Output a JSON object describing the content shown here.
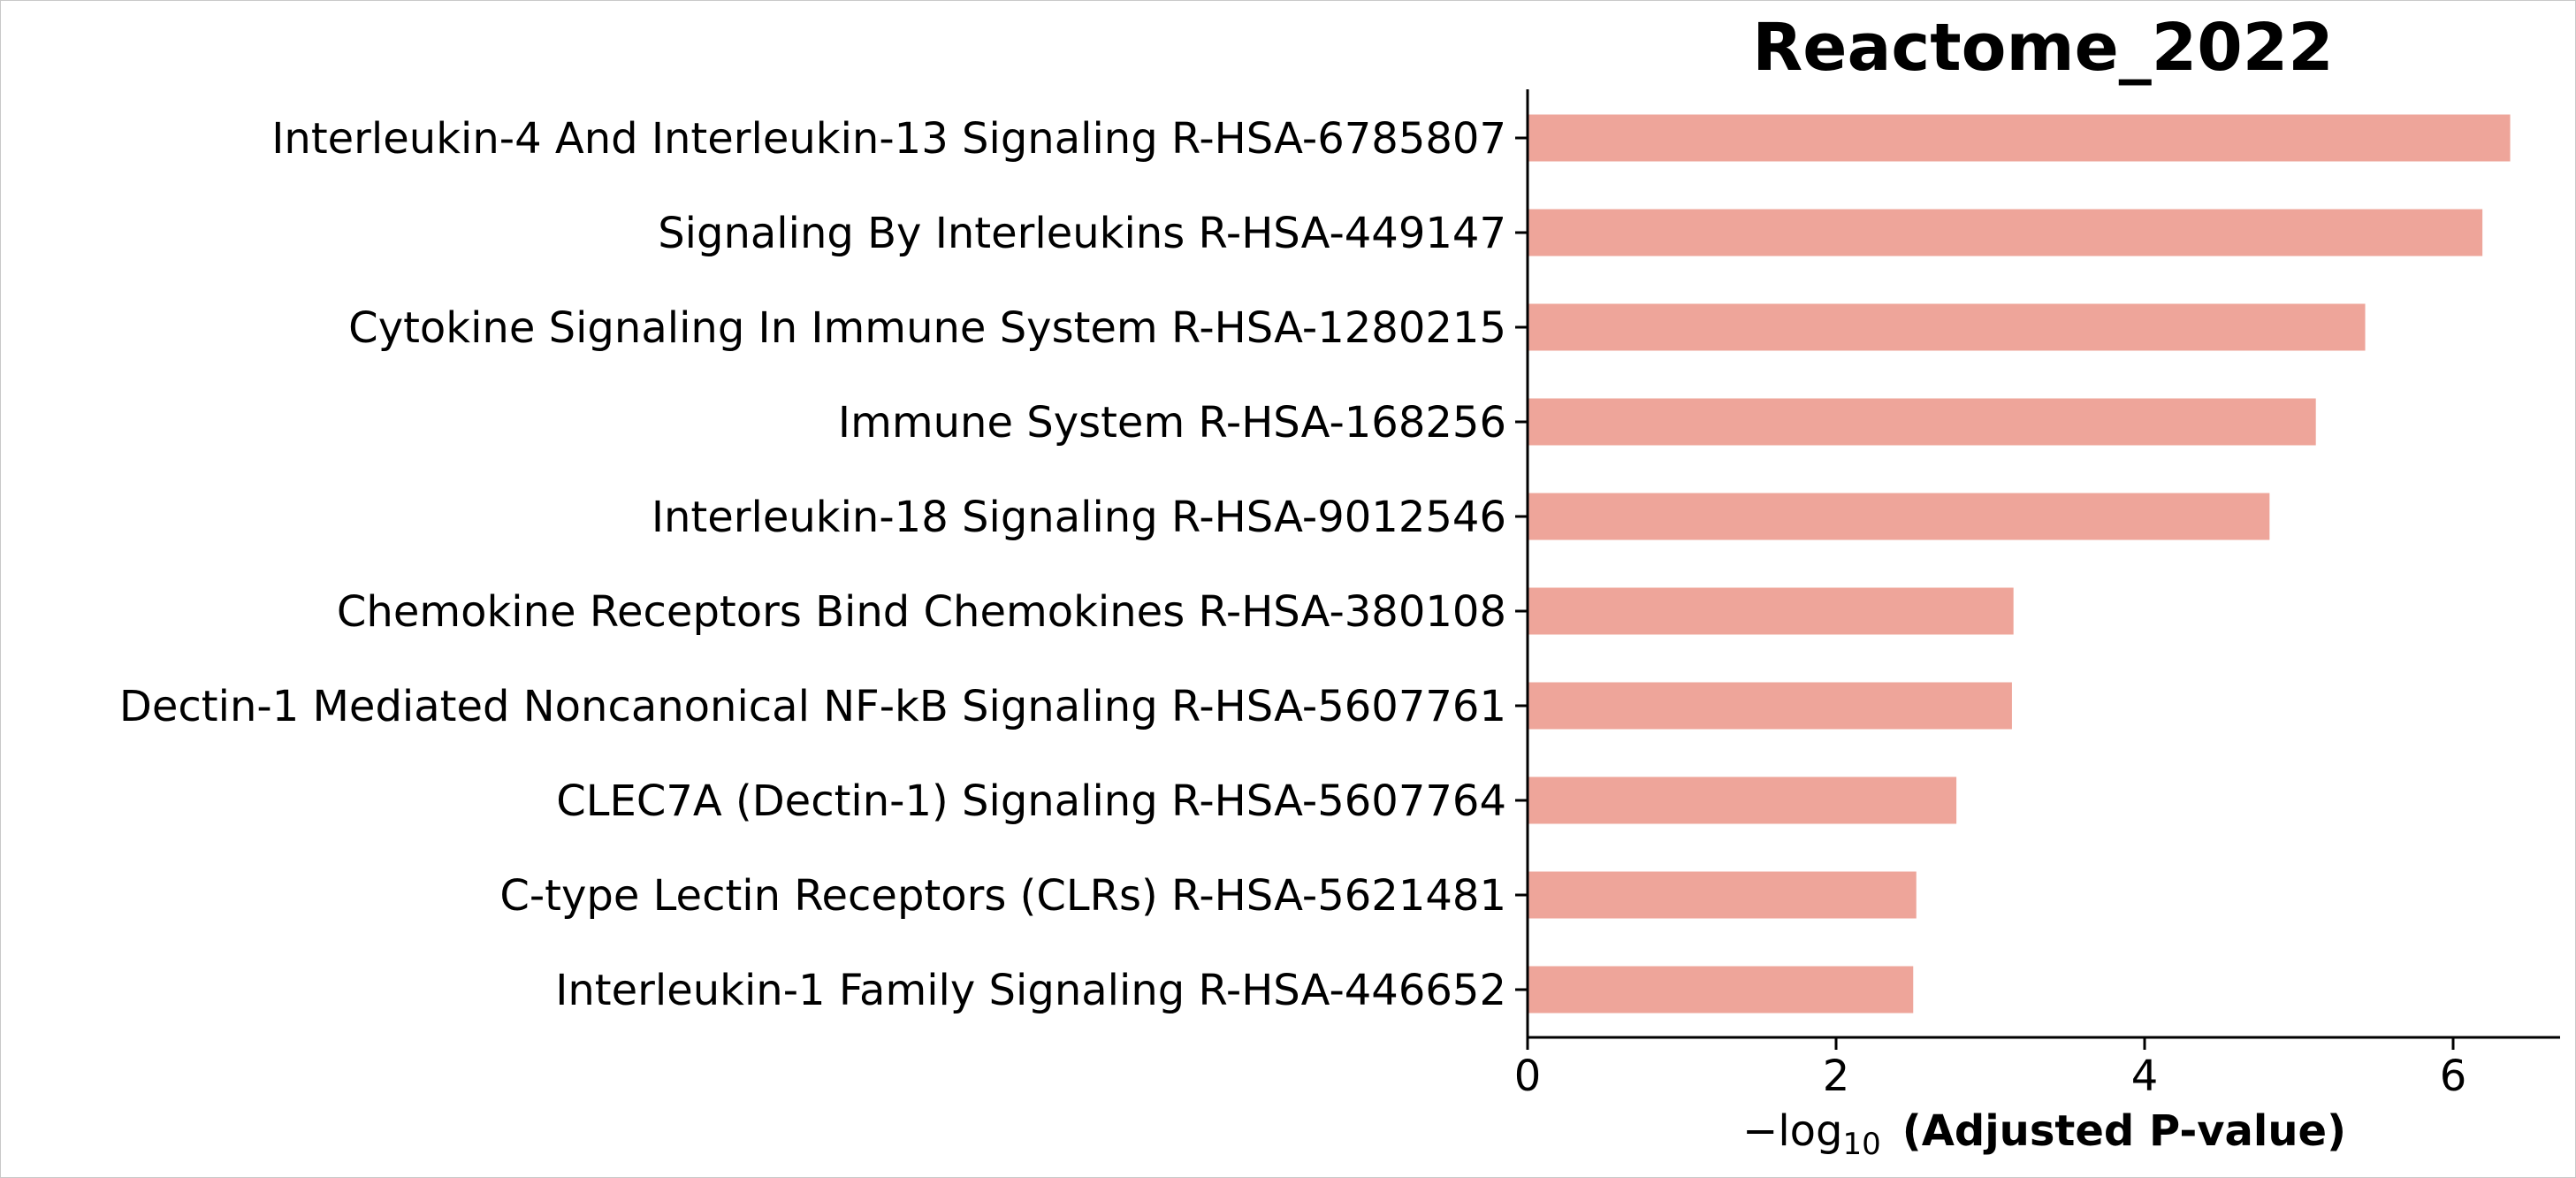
{
  "chart_data": {
    "type": "bar",
    "orientation": "horizontal",
    "title": "Reactome_2022",
    "xlabel_prefix": "−log",
    "xlabel_subscript": "10",
    "xlabel_bold": "(Adjusted P-value)",
    "ylabel": "",
    "xlim": [
      0,
      6.7
    ],
    "xticks": [
      0,
      2,
      4,
      6
    ],
    "grid": false,
    "bar_color": "#eea59a",
    "categories": [
      "Interleukin-4 And Interleukin-13 Signaling R-HSA-6785807",
      "Signaling By Interleukins R-HSA-449147",
      "Cytokine Signaling In Immune System R-HSA-1280215",
      "Immune System R-HSA-168256",
      "Interleukin-18 Signaling R-HSA-9012546",
      "Chemokine Receptors Bind Chemokines R-HSA-380108",
      "Dectin-1 Mediated Noncanonical NF-kB Signaling R-HSA-5607761",
      "CLEC7A (Dectin-1) Signaling R-HSA-5607764",
      "C-type Lectin Receptors (CLRs) R-HSA-5621481",
      "Interleukin-1 Family Signaling R-HSA-446652"
    ],
    "values": [
      6.37,
      6.19,
      5.43,
      5.11,
      4.81,
      3.15,
      3.14,
      2.78,
      2.52,
      2.5
    ]
  }
}
